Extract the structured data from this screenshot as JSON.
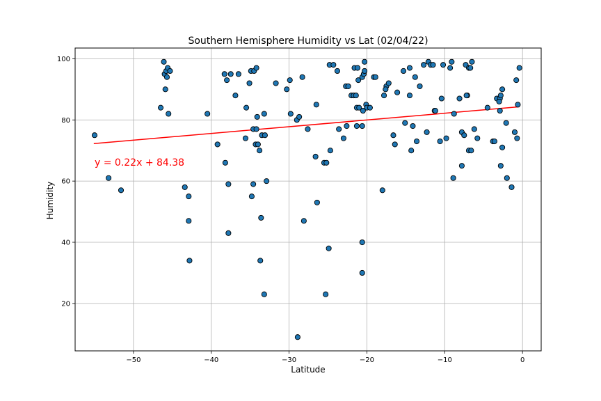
{
  "chart_data": {
    "type": "scatter",
    "title": "Southern Hemisphere Humidity vs Lat (02/04/22)",
    "xlabel": "Latitude",
    "ylabel": "Humidity",
    "xlim": [
      -57.5,
      2.4
    ],
    "ylim": [
      4.5,
      103.5
    ],
    "xticks": [
      -50,
      -40,
      -30,
      -20,
      -10,
      0
    ],
    "xtick_labels": [
      "−50",
      "−40",
      "−30",
      "−20",
      "−10",
      "0"
    ],
    "yticks": [
      20,
      40,
      60,
      80,
      100
    ],
    "ytick_labels": [
      "20",
      "40",
      "60",
      "80",
      "100"
    ],
    "grid": true,
    "marker_color": "#1f77b4",
    "marker_edge_color": "#000000",
    "regression": {
      "slope": 0.22,
      "intercept": 84.38,
      "x_range": [
        -55.1,
        -0.4
      ],
      "color": "#ff0000",
      "equation_label": "y = 0.22x + 84.38"
    },
    "points": [
      [
        -55.0,
        75
      ],
      [
        -53.2,
        61
      ],
      [
        -51.6,
        57
      ],
      [
        -46.1,
        99
      ],
      [
        -46.0,
        95
      ],
      [
        -45.8,
        96
      ],
      [
        -45.6,
        97
      ],
      [
        -45.3,
        96
      ],
      [
        -45.9,
        90
      ],
      [
        -45.7,
        94
      ],
      [
        -46.5,
        84
      ],
      [
        -45.5,
        82
      ],
      [
        -43.4,
        58
      ],
      [
        -42.9,
        55
      ],
      [
        -42.9,
        47
      ],
      [
        -42.8,
        34
      ],
      [
        -40.5,
        82
      ],
      [
        -39.2,
        72
      ],
      [
        -38.3,
        95
      ],
      [
        -38.0,
        93
      ],
      [
        -38.2,
        66
      ],
      [
        -37.8,
        59
      ],
      [
        -37.8,
        43
      ],
      [
        -37.5,
        95
      ],
      [
        -36.9,
        88
      ],
      [
        -36.5,
        95
      ],
      [
        -35.6,
        74
      ],
      [
        -35.5,
        84
      ],
      [
        -35.1,
        92
      ],
      [
        -34.9,
        96
      ],
      [
        -34.5,
        96
      ],
      [
        -34.2,
        97
      ],
      [
        -34.8,
        55
      ],
      [
        -34.6,
        59
      ],
      [
        -34.6,
        77
      ],
      [
        -34.3,
        72
      ],
      [
        -34.1,
        81
      ],
      [
        -34.0,
        72
      ],
      [
        -34.2,
        77
      ],
      [
        -33.8,
        70
      ],
      [
        -33.6,
        48
      ],
      [
        -33.7,
        34
      ],
      [
        -33.5,
        75
      ],
      [
        -33.2,
        82
      ],
      [
        -33.1,
        75
      ],
      [
        -32.9,
        60
      ],
      [
        -33.2,
        23
      ],
      [
        -31.7,
        92
      ],
      [
        -30.3,
        90
      ],
      [
        -29.9,
        93
      ],
      [
        -29.8,
        82
      ],
      [
        -29.0,
        80
      ],
      [
        -28.7,
        81
      ],
      [
        -28.3,
        94
      ],
      [
        -28.1,
        47
      ],
      [
        -27.6,
        77
      ],
      [
        -28.9,
        9
      ],
      [
        -26.5,
        85
      ],
      [
        -26.6,
        68
      ],
      [
        -26.4,
        53
      ],
      [
        -25.5,
        66
      ],
      [
        -25.2,
        66
      ],
      [
        -24.8,
        98
      ],
      [
        -24.3,
        98
      ],
      [
        -23.8,
        96
      ],
      [
        -23.6,
        77
      ],
      [
        -23.0,
        74
      ],
      [
        -24.7,
        70
      ],
      [
        -24.9,
        38
      ],
      [
        -25.3,
        23
      ],
      [
        -22.7,
        91
      ],
      [
        -22.4,
        91
      ],
      [
        -22.6,
        78
      ],
      [
        -22.0,
        88
      ],
      [
        -21.7,
        88
      ],
      [
        -21.4,
        88
      ],
      [
        -21.3,
        84
      ],
      [
        -21.1,
        93
      ],
      [
        -21.0,
        84
      ],
      [
        -21.6,
        97
      ],
      [
        -21.2,
        97
      ],
      [
        -21.3,
        78
      ],
      [
        -20.6,
        94
      ],
      [
        -20.4,
        95
      ],
      [
        -20.3,
        96
      ],
      [
        -20.3,
        99
      ],
      [
        -20.1,
        85
      ],
      [
        -20.0,
        84
      ],
      [
        -20.5,
        83
      ],
      [
        -20.6,
        78
      ],
      [
        -19.6,
        84
      ],
      [
        -19.1,
        94
      ],
      [
        -18.9,
        94
      ],
      [
        -20.6,
        40
      ],
      [
        -20.6,
        30
      ],
      [
        -18.0,
        57
      ],
      [
        -17.5,
        91
      ],
      [
        -17.6,
        90
      ],
      [
        -17.8,
        88
      ],
      [
        -17.2,
        92
      ],
      [
        -16.6,
        75
      ],
      [
        -16.4,
        72
      ],
      [
        -16.1,
        89
      ],
      [
        -15.3,
        96
      ],
      [
        -15.1,
        79
      ],
      [
        -14.5,
        97
      ],
      [
        -14.5,
        88
      ],
      [
        -14.3,
        70
      ],
      [
        -14.1,
        78
      ],
      [
        -13.8,
        94
      ],
      [
        -13.6,
        73
      ],
      [
        -13.2,
        91
      ],
      [
        -12.7,
        98
      ],
      [
        -12.3,
        76
      ],
      [
        -12.1,
        99
      ],
      [
        -11.8,
        98
      ],
      [
        -11.5,
        98
      ],
      [
        -11.3,
        83
      ],
      [
        -11.2,
        83
      ],
      [
        -10.6,
        73
      ],
      [
        -10.4,
        87
      ],
      [
        -10.2,
        98
      ],
      [
        -9.8,
        74
      ],
      [
        -9.3,
        97
      ],
      [
        -9.1,
        99
      ],
      [
        -8.9,
        61
      ],
      [
        -8.8,
        82
      ],
      [
        -8.1,
        87
      ],
      [
        -7.8,
        76
      ],
      [
        -7.8,
        65
      ],
      [
        -7.5,
        75
      ],
      [
        -7.3,
        98
      ],
      [
        -7.1,
        88
      ],
      [
        -7.2,
        88
      ],
      [
        -6.9,
        97
      ],
      [
        -6.7,
        97
      ],
      [
        -6.5,
        99
      ],
      [
        -6.9,
        70
      ],
      [
        -6.6,
        70
      ],
      [
        -6.2,
        77
      ],
      [
        -5.8,
        74
      ],
      [
        -4.5,
        84
      ],
      [
        -3.8,
        73
      ],
      [
        -3.6,
        73
      ],
      [
        -3.3,
        87
      ],
      [
        -2.9,
        87
      ],
      [
        -3.0,
        86
      ],
      [
        -2.8,
        88
      ],
      [
        -2.6,
        90
      ],
      [
        -2.9,
        83
      ],
      [
        -2.8,
        65
      ],
      [
        -2.6,
        71
      ],
      [
        -2.1,
        79
      ],
      [
        -2.0,
        61
      ],
      [
        -1.4,
        58
      ],
      [
        -1.0,
        76
      ],
      [
        -0.8,
        93
      ],
      [
        -0.6,
        85
      ],
      [
        -0.7,
        74
      ],
      [
        -0.4,
        97
      ]
    ]
  }
}
